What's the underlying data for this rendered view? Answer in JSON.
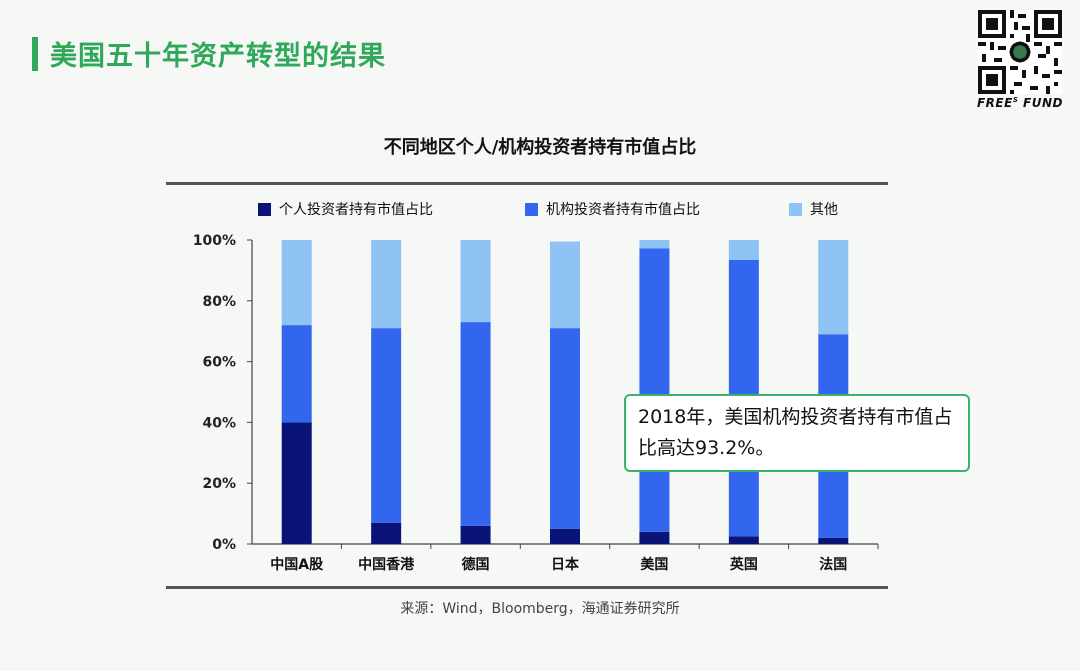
{
  "slide": {
    "title": "美国五十年资产转型的结果",
    "brand": "FREE",
    "brand_sup": "S",
    "brand_suffix": " FUND"
  },
  "chart_data": {
    "type": "bar",
    "stacked": true,
    "title": "不同地区个人/机构投资者持有市值占比",
    "categories": [
      "中国A股",
      "中国香港",
      "德国",
      "日本",
      "美国",
      "英国",
      "法国"
    ],
    "series": [
      {
        "name": "个人投资者持有市值占比",
        "color": "#0a1478",
        "values": [
          40,
          7,
          6,
          5,
          4,
          2.5,
          2
        ]
      },
      {
        "name": "机构投资者持有市值占比",
        "color": "#3366ee",
        "values": [
          32,
          64,
          67,
          66,
          93.2,
          91,
          67
        ]
      },
      {
        "name": "其他",
        "color": "#8ec3f4",
        "values": [
          28,
          29,
          27,
          28.5,
          2.8,
          6.5,
          31
        ]
      }
    ],
    "y_ticks": [
      "0%",
      "20%",
      "40%",
      "60%",
      "80%",
      "100%"
    ],
    "ylim": [
      0,
      100
    ],
    "legend": "top",
    "xlabel": "",
    "ylabel": ""
  },
  "callout": {
    "text": "2018年，美国机构投资者持有市值占比高达93.2%。"
  },
  "source": "来源：Wind，Bloomberg，海通证券研究所"
}
